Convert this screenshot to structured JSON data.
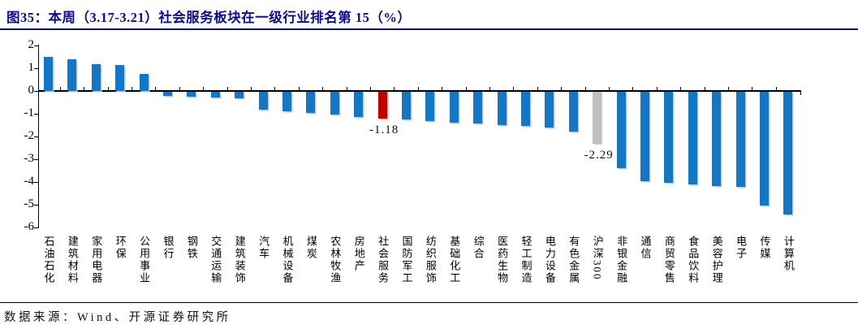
{
  "figure": {
    "title": "图35：本周（3.17-3.21）社会服务板块在一级行业排名第 15（%）",
    "source": "数据来源：Wind、开源证券研究所"
  },
  "colors": {
    "title_navy": "#0d0d8c",
    "bar_default_blue": "#1577c2",
    "bar_highlight_red": "#c00000",
    "bar_benchmark_gray": "#bfbfbf",
    "axis_black": "#000000"
  },
  "chart_data": {
    "type": "bar",
    "title": "图35：本周（3.17-3.21）社会服务板块在一级行业排名第 15（%）",
    "categories": [
      "石油石化",
      "建筑材料",
      "家用电器",
      "环保",
      "公用事业",
      "银行",
      "钢铁",
      "交通运输",
      "建筑装饰",
      "汽车",
      "机械设备",
      "煤炭",
      "农林牧渔",
      "房地产",
      "社会服务",
      "国防军工",
      "纺织服饰",
      "基础化工",
      "综合",
      "医药生物",
      "轻工制造",
      "电力设备",
      "有色金属",
      "沪深300",
      "非银金融",
      "通信",
      "商贸零售",
      "食品饮料",
      "美容护理",
      "电子",
      "传媒",
      "计算机"
    ],
    "values": [
      1.5,
      1.41,
      1.17,
      1.13,
      0.74,
      -0.19,
      -0.2,
      -0.26,
      -0.29,
      -0.8,
      -0.87,
      -0.94,
      -1.0,
      -1.12,
      -1.18,
      -1.2,
      -1.3,
      -1.36,
      -1.38,
      -1.45,
      -1.5,
      -1.58,
      -1.76,
      -2.29,
      -3.36,
      -3.93,
      -4.0,
      -4.08,
      -4.14,
      -4.18,
      -5.0,
      -5.4
    ],
    "highlight_category": "社会服务",
    "benchmark_category": "沪深300",
    "data_labels": [
      {
        "category": "社会服务",
        "text": "-1.18"
      },
      {
        "category": "沪深300",
        "text": "-2.29"
      }
    ],
    "ylabel": "",
    "xlabel": "",
    "ylim": [
      -6,
      2
    ],
    "yticks": [
      2,
      1,
      0,
      -1,
      -2,
      -3,
      -4,
      -5,
      -6
    ],
    "grid": false,
    "legend_position": "none",
    "unit": "%"
  }
}
